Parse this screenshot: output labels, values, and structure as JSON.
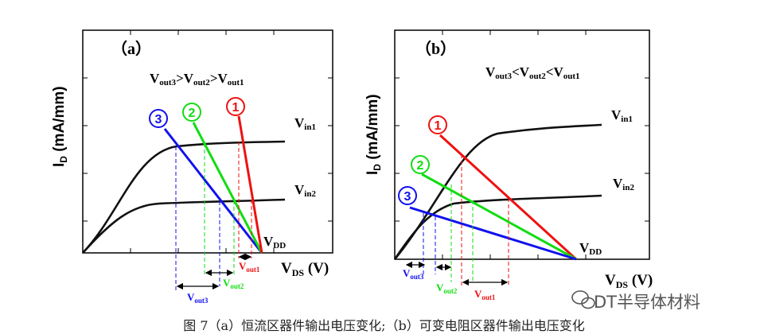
{
  "caption": "图 7（a）恒流区器件输出电压变化;（b）可变电阻区器件输出电压变化",
  "watermark": "DT半导体材料",
  "colors": {
    "line1": "#ee1111",
    "line2": "#11dd11",
    "line3": "#1111ee",
    "curve": "#111111"
  },
  "panel_a": {
    "label": "（a）",
    "y_axis_label": "I",
    "y_axis_sub": "D",
    "y_axis_units": " (mA/mm)",
    "x_axis_label": "V",
    "x_axis_sub": "DS",
    "x_axis_units": " (V)",
    "relation": {
      "v3": "V",
      "v3sub": "out3",
      "op1": ">",
      "v2": "V",
      "v2sub": "out2",
      "op2": ">",
      "v1": "V",
      "v1sub": "out1"
    },
    "curve1": {
      "label": "V",
      "sub": "in1"
    },
    "curve2": {
      "label": "V",
      "sub": "in2"
    },
    "vdd": {
      "label": "V",
      "sub": "DD"
    },
    "markers": [
      "1",
      "2",
      "3"
    ],
    "vout1": {
      "label": "V",
      "sub": "out1"
    },
    "vout2": {
      "label": "V",
      "sub": "out2"
    },
    "vout3": {
      "label": "V",
      "sub": "out3"
    }
  },
  "panel_b": {
    "label": "（b）",
    "y_axis_label": "I",
    "y_axis_sub": "D",
    "y_axis_units": " (mA/mm)",
    "x_axis_label": "V",
    "x_axis_sub": "DS",
    "x_axis_units": " (V)",
    "relation": {
      "v3": "V",
      "v3sub": "out3",
      "op1": "<",
      "v2": "V",
      "v2sub": "out2",
      "op2": "<",
      "v1": "V",
      "v1sub": "out1"
    },
    "curve1": {
      "label": "V",
      "sub": "in1"
    },
    "curve2": {
      "label": "V",
      "sub": "in2"
    },
    "vdd": {
      "label": "V",
      "sub": "DD"
    },
    "markers": [
      "1",
      "2",
      "3"
    ],
    "vout1": {
      "label": "V",
      "sub": "out1"
    },
    "vout2": {
      "label": "V",
      "sub": "out2"
    },
    "vout3": {
      "label": "V",
      "sub": "out3"
    }
  }
}
